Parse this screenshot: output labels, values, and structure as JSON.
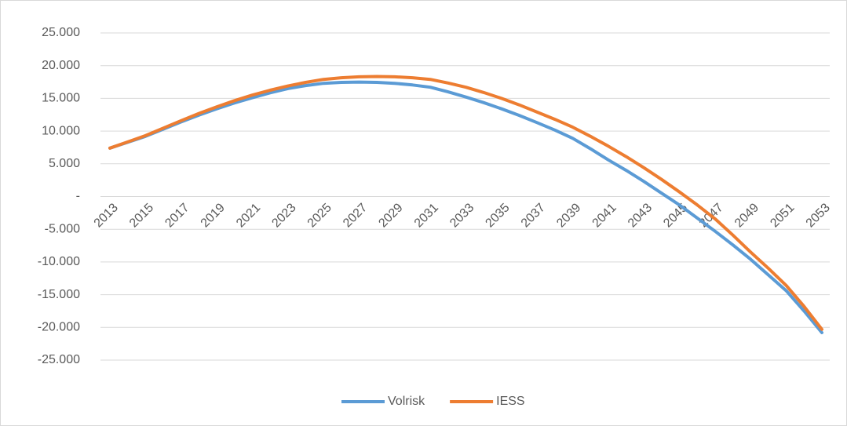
{
  "chart_data": {
    "type": "line",
    "x": [
      2013,
      2014,
      2015,
      2016,
      2017,
      2018,
      2019,
      2020,
      2021,
      2022,
      2023,
      2024,
      2025,
      2026,
      2027,
      2028,
      2029,
      2030,
      2031,
      2032,
      2033,
      2034,
      2035,
      2036,
      2037,
      2038,
      2039,
      2040,
      2041,
      2042,
      2043,
      2044,
      2045,
      2046,
      2047,
      2048,
      2049,
      2050,
      2051,
      2052,
      2053
    ],
    "series": [
      {
        "name": "Volrisk",
        "color": "#5b9bd5",
        "values": [
          7400,
          8300,
          9200,
          10300,
          11400,
          12450,
          13400,
          14300,
          15100,
          15850,
          16500,
          16950,
          17300,
          17450,
          17500,
          17450,
          17300,
          17050,
          16700,
          16000,
          15200,
          14350,
          13400,
          12400,
          11300,
          10150,
          8900,
          7300,
          5600,
          4000,
          2300,
          500,
          -1300,
          -3300,
          -5300,
          -7400,
          -9600,
          -12000,
          -14400,
          -17500,
          -20800
        ]
      },
      {
        "name": "IESS",
        "color": "#ed7d31",
        "values": [
          7400,
          8350,
          9300,
          10450,
          11600,
          12700,
          13700,
          14650,
          15500,
          16250,
          16900,
          17450,
          17900,
          18150,
          18300,
          18350,
          18300,
          18150,
          17900,
          17350,
          16700,
          15900,
          15000,
          14000,
          12900,
          11800,
          10600,
          9200,
          7700,
          6100,
          4400,
          2600,
          700,
          -1300,
          -3400,
          -5900,
          -8500,
          -11000,
          -13600,
          -16800,
          -20300
        ]
      }
    ],
    "xlim": [
      2013,
      2053
    ],
    "xticks": [
      2013,
      2015,
      2017,
      2019,
      2021,
      2023,
      2025,
      2027,
      2029,
      2031,
      2033,
      2035,
      2037,
      2039,
      2041,
      2043,
      2045,
      2047,
      2049,
      2051,
      2053
    ],
    "ylim": [
      -25000,
      25000
    ],
    "yticks": [
      {
        "value": 25000,
        "label": "25.000"
      },
      {
        "value": 20000,
        "label": "20.000"
      },
      {
        "value": 15000,
        "label": "15.000"
      },
      {
        "value": 10000,
        "label": "10.000"
      },
      {
        "value": 5000,
        "label": "5.000"
      },
      {
        "value": 0,
        "label": "-"
      },
      {
        "value": -5000,
        "label": "-5.000"
      },
      {
        "value": -10000,
        "label": "-10.000"
      },
      {
        "value": -15000,
        "label": "-15.000"
      },
      {
        "value": -20000,
        "label": "-20.000"
      },
      {
        "value": -25000,
        "label": "-25.000"
      }
    ],
    "grid": true,
    "legend": "bottom"
  }
}
